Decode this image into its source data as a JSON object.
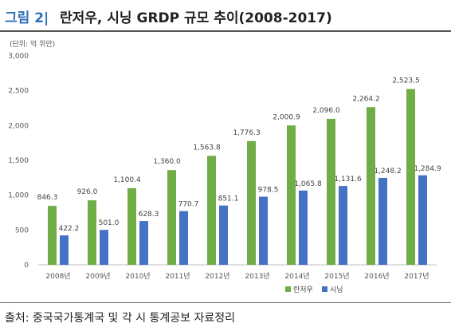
{
  "header": {
    "figure_label": "그림 2|",
    "title": "란저우, 시닝 GRDP 규모 추이(2008-2017)"
  },
  "unit_label": "(단위: 억 위안)",
  "source": "출처: 중국국가통계국 및 각 시 통계공보 자료정리",
  "chart_data": {
    "type": "bar",
    "title": "란저우, 시닝 GRDP 규모 추이(2008-2017)",
    "xlabel": "",
    "ylabel": "(단위: 억 위안)",
    "ylim": [
      0,
      3000
    ],
    "yticks": [
      0,
      500,
      1000,
      1500,
      2000,
      2500,
      3000
    ],
    "ytick_labels": [
      "0",
      "500",
      "1,000",
      "1,500",
      "2,000",
      "2,500",
      "3,000"
    ],
    "grid": false,
    "legend_position": "bottom-right",
    "categories": [
      "2008년",
      "2009년",
      "2010년",
      "2011년",
      "2012년",
      "2013년",
      "2014년",
      "2015년",
      "2016년",
      "2017년"
    ],
    "series": [
      {
        "name": "란저우",
        "color": "#70ad47",
        "values": [
          846.3,
          926.0,
          1100.4,
          1360.0,
          1563.8,
          1776.3,
          2000.9,
          2096.0,
          2264.2,
          2523.5
        ],
        "labels": [
          "846.3",
          "926.0",
          "1,100.4",
          "1,360.0",
          "1,563.8",
          "1,776.3",
          "2,000.9",
          "2,096.0",
          "2,264.2",
          "2,523.5"
        ]
      },
      {
        "name": "시닝",
        "color": "#4472c4",
        "values": [
          422.2,
          501.0,
          628.3,
          770.7,
          851.1,
          978.5,
          1065.8,
          1131.6,
          1248.2,
          1284.9
        ],
        "labels": [
          "422.2",
          "501.0",
          "628.3",
          "770.7",
          "851.1",
          "978.5",
          "1,065.8",
          "1,131.6",
          "1,248.2",
          "1,284.9"
        ]
      }
    ]
  }
}
